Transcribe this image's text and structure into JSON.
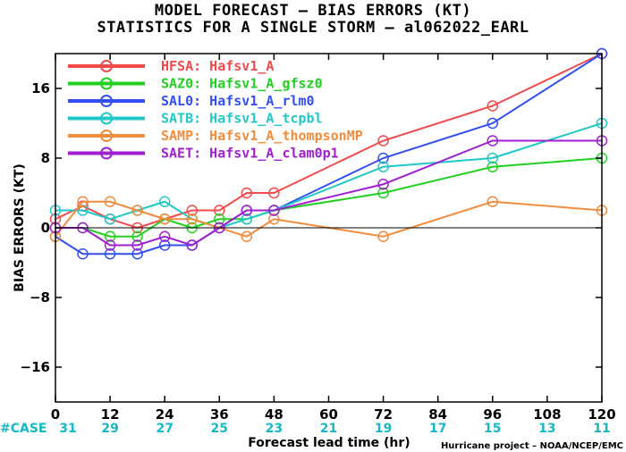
{
  "header": {
    "title_line1": "MODEL FORECAST – BIAS ERRORS (KT)",
    "title_line2": "STATISTICS FOR A SINGLE STORM – al062022_EARL"
  },
  "footer": {
    "case_label": "#CASE",
    "credit": "Hurricane project – NOAA/NCEP/EMC"
  },
  "chart_data": {
    "type": "line",
    "xlabel": "Forecast lead time (hr)",
    "ylabel": "BIAS ERRORS (KT)",
    "xlim": [
      0,
      120
    ],
    "ylim": [
      -20,
      20
    ],
    "xticks": [
      0,
      12,
      24,
      36,
      48,
      60,
      72,
      84,
      96,
      108,
      120
    ],
    "xtick_labels": [
      "0",
      "12",
      "24",
      "36",
      "48",
      "60",
      "72",
      "84",
      "96",
      "108",
      "120"
    ],
    "yticks": [
      -16,
      -8,
      0,
      8,
      16
    ],
    "ytick_labels": [
      "−16",
      "−8",
      "0",
      "8",
      "16"
    ],
    "zero_line": true,
    "grid": false,
    "legend_position": "top-left",
    "case_counts": [
      "31",
      "29",
      "27",
      "25",
      "23",
      "21",
      "19",
      "17",
      "15",
      "13",
      "11"
    ],
    "series": [
      {
        "name": "HFSA:",
        "model": "Hafsv1_A",
        "color": "#f04a4a",
        "x": [
          0,
          6,
          12,
          18,
          24,
          30,
          36,
          42,
          48,
          72,
          96,
          120
        ],
        "y": [
          1,
          2.5,
          1,
          0,
          1,
          2,
          2,
          4,
          4,
          10,
          14,
          20
        ]
      },
      {
        "name": "SAZ0:",
        "model": "Hafsv1_A_gfsz0",
        "color": "#22d022",
        "x": [
          0,
          6,
          12,
          18,
          24,
          30,
          36,
          42,
          48,
          72,
          96,
          120
        ],
        "y": [
          0,
          0,
          -1,
          -1,
          1,
          0,
          1,
          1,
          2,
          4,
          7,
          8
        ]
      },
      {
        "name": "SAL0:",
        "model": "Hafsv1_A_rlm0",
        "color": "#3350ee",
        "x": [
          0,
          6,
          12,
          18,
          24,
          30,
          36,
          42,
          48,
          72,
          96,
          120
        ],
        "y": [
          -1,
          -3,
          -3,
          -3,
          -2,
          -2,
          0,
          2,
          2,
          8,
          12,
          20
        ]
      },
      {
        "name": "SATB:",
        "model": "Hafsv1_A_tcpbl",
        "color": "#22c8c8",
        "x": [
          0,
          6,
          12,
          18,
          24,
          30,
          36,
          42,
          48,
          72,
          96,
          120
        ],
        "y": [
          2,
          2,
          1,
          2,
          3,
          1,
          0,
          1,
          2,
          7,
          8,
          12
        ]
      },
      {
        "name": "SAMP:",
        "model": "Hafsv1_A_thompsonMP",
        "color": "#f08c3c",
        "x": [
          0,
          6,
          12,
          18,
          24,
          30,
          36,
          42,
          48,
          72,
          96,
          120
        ],
        "y": [
          -1,
          3,
          3,
          2,
          1,
          1,
          0,
          -1,
          1,
          -1,
          3,
          2
        ]
      },
      {
        "name": "SAET:",
        "model": "Hafsv1_A_clam0p1",
        "color": "#a020d0",
        "x": [
          0,
          6,
          12,
          18,
          24,
          30,
          36,
          42,
          48,
          72,
          96,
          120
        ],
        "y": [
          0,
          0,
          -2,
          -2,
          -1,
          -2,
          0,
          2,
          2,
          5,
          10,
          10
        ]
      }
    ]
  }
}
